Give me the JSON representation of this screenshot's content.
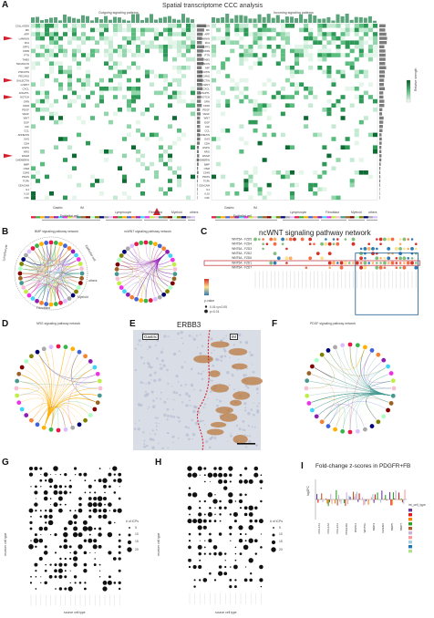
{
  "figure": {
    "panels": {
      "A": {
        "label": "A",
        "title": "Spatial transcriptome CCC analysis",
        "left_subtitle": "Outgoing signaling patterns",
        "right_subtitle": "Incoming signaling patterns",
        "legend_title": "Relative strength",
        "pathways": [
          "COLLAGEN",
          "MK",
          "APP",
          "LAMININ",
          "FN1",
          "SPP1",
          "CD99",
          "PTN",
          "THBS",
          "TENASCIN",
          "MIF",
          "VISFATIN",
          "PECAM1",
          "GALECTIN",
          "ncWNT",
          "CXCL",
          "ANGPTL",
          "NOTCH",
          "GRN",
          "CD46",
          "PDGF",
          "VEGF",
          "WNT",
          "EGF",
          "IGF",
          "CCL",
          "ANNEXIN",
          "GAS",
          "CDH",
          "HSPG",
          "NRG",
          "ESAM",
          "CHEMERIN",
          "BMP",
          "OSM",
          "CD45",
          "PROS",
          "TGFb",
          "CEACAM",
          "IL1",
          "IL16",
          "CSF"
        ],
        "cell_groups": [
          "Epithelial cell",
          "Lymphocyte",
          "Fibroblast",
          "Myeloid",
          "others"
        ],
        "subgroups": [
          "Gastric",
          "IM"
        ]
      },
      "B": {
        "label": "B",
        "left_title": "BMP signaling pathway network",
        "right_title": "ncWNT signaling pathway network",
        "ring_labels": [
          "Lymphocyte",
          "Epithelial cell",
          "Fibroblast",
          "Myeloid",
          "others"
        ]
      },
      "C": {
        "label": "C",
        "title": "ncWNT signaling pathway network",
        "rows": [
          "WNT5A - FZD5",
          "WNT5A - FZD4",
          "WNT5A - FZD3",
          "WNT5A - FZD2",
          "WNT5A - FZD6",
          "WNT5A - FZD1",
          "WNT5A - FZD7"
        ],
        "legend_title": "p-value",
        "legend_items": [
          "0.01<p<0.05",
          "p<0.01"
        ]
      },
      "D": {
        "label": "D",
        "title": "NRG signaling pathway network"
      },
      "E": {
        "label": "E",
        "title": "ERBB3",
        "tag_left": "Gastric",
        "tag_right": "IM"
      },
      "F": {
        "label": "F",
        "title": "PDGF signaling pathway network"
      },
      "G": {
        "label": "G",
        "ylabel": "receiver cell type",
        "xlabel": "source cell type",
        "legend_title": "# of ICPs",
        "legend_values": [
          "5",
          "10",
          "15",
          "20"
        ]
      },
      "H": {
        "label": "H",
        "ylabel": "receiver cell type",
        "xlabel": "source cell type",
        "legend_title": "# of ICPs",
        "legend_values": [
          "5",
          "10",
          "15",
          "20"
        ]
      },
      "I": {
        "label": "I",
        "title": "Fold-change z-scores in PDGFR+FB",
        "ylabel": "log2FC",
        "genes": [
          "COL1A1",
          "COL1A2",
          "COL3A1",
          "PDGFRA",
          "RSPO3",
          "WNT5A",
          "BMP4",
          "GREM1",
          "BMP5",
          "BMP7"
        ],
        "legend_title": "int_cell_type"
      }
    }
  },
  "colors": {
    "heat_dark": "#0b5a2a",
    "heat_mid": "#42a96a",
    "heat_light": "#cfeedd",
    "arrow": "#d62030",
    "box": "#1b5a8a",
    "highlight": "#c0282d"
  }
}
